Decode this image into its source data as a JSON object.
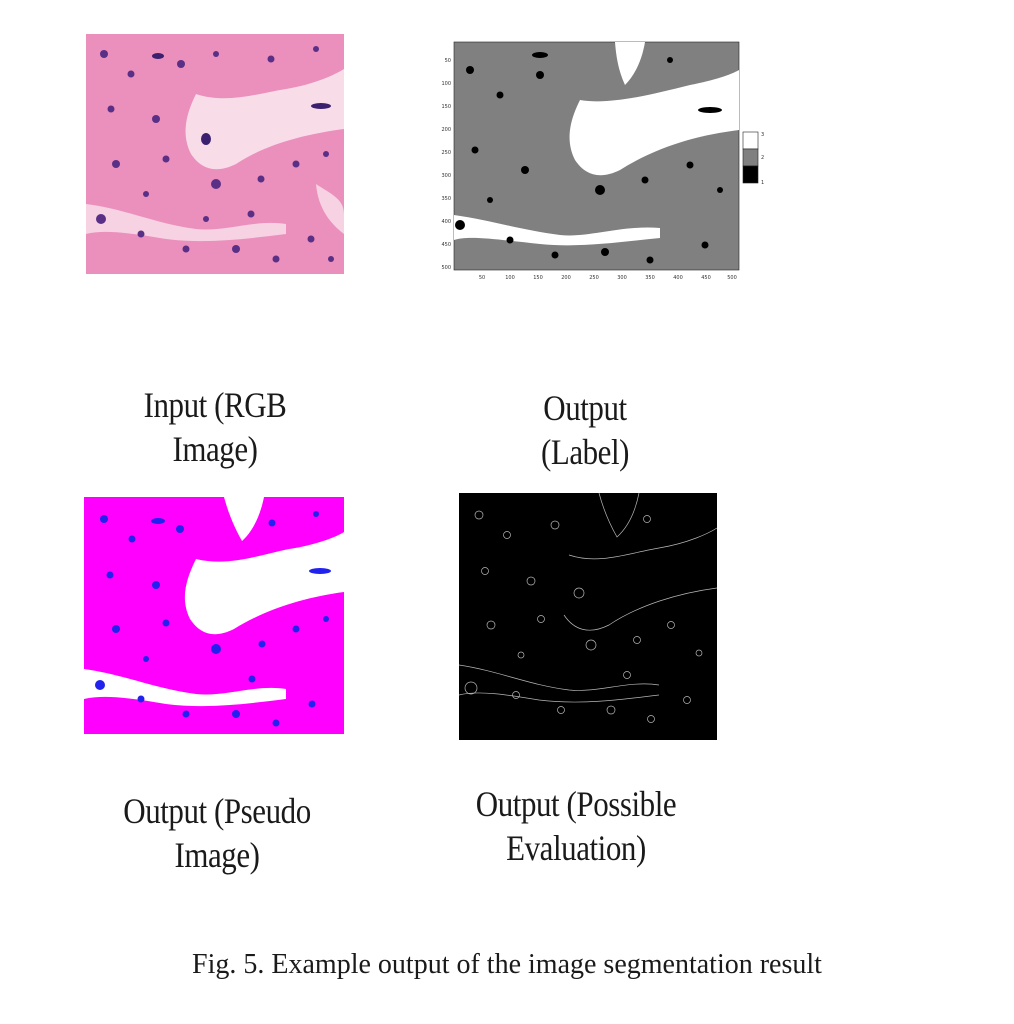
{
  "panels": {
    "rgb": {
      "caption_line1": "Input (RGB",
      "caption_line2": "Image)"
    },
    "label": {
      "caption_line1": "Output",
      "caption_line2": "(Label)",
      "y_ticks": [
        "50",
        "100",
        "150",
        "200",
        "250",
        "300",
        "350",
        "400",
        "450",
        "500"
      ],
      "x_ticks": [
        "50",
        "100",
        "150",
        "200",
        "250",
        "300",
        "350",
        "400",
        "450",
        "500"
      ],
      "colorbar_ticks": [
        "3",
        "2",
        "1"
      ]
    },
    "pseudo": {
      "caption_line1": "Output (Pseudo",
      "caption_line2": "Image)"
    },
    "eval": {
      "caption_line1": "Output (Possible",
      "caption_line2": "Evaluation)"
    }
  },
  "figure_caption": "Fig. 5. Example output of the image segmentation result",
  "colors": {
    "tissue_pink": "#e889b5",
    "nucleus_purple": "#5a2f86",
    "label_gray": "#808080",
    "pseudo_magenta": "#ff00ff",
    "pseudo_blue": "#2222ee"
  }
}
